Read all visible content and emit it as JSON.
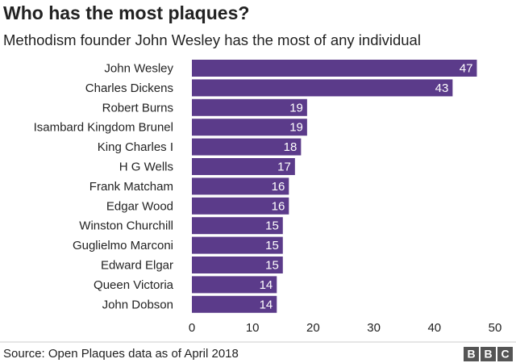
{
  "chart_data": {
    "type": "bar",
    "orientation": "horizontal",
    "title": "Who has the most plaques?",
    "subtitle": "Methodism founder John Wesley has the most of any individual",
    "categories": [
      "John Wesley",
      "Charles Dickens",
      "Robert Burns",
      "Isambard Kingdom Brunel",
      "King Charles I",
      "H G Wells",
      "Frank Matcham",
      "Edgar Wood",
      "Winston Churchill",
      "Guglielmo Marconi",
      "Edward Elgar",
      "Queen Victoria",
      "John Dobson"
    ],
    "values": [
      47,
      43,
      19,
      19,
      18,
      17,
      16,
      16,
      15,
      15,
      15,
      14,
      14
    ],
    "color": "#5b3b8a",
    "xlim": [
      0,
      50
    ],
    "xticks": [
      0,
      10,
      20,
      30,
      40,
      50
    ],
    "grid": false,
    "source": "Source: Open Plaques data as of April 2018",
    "logo": [
      "B",
      "B",
      "C"
    ]
  }
}
